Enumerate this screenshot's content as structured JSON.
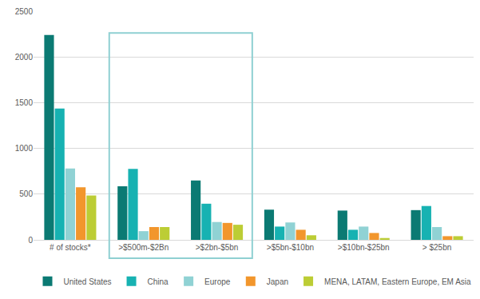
{
  "chart_data": {
    "type": "bar",
    "categories": [
      "# of stocks*",
      ">$500m-$2Bn",
      ">$2bn-$5bn",
      ">$5bn-$10bn",
      ">$10bn-$25bn",
      "> $25bn"
    ],
    "series": [
      {
        "name": "United States",
        "color": "#0b7a73",
        "values": [
          2240,
          585,
          650,
          330,
          320,
          325
        ]
      },
      {
        "name": "China",
        "color": "#17b2b2",
        "values": [
          1435,
          775,
          395,
          145,
          110,
          370
        ]
      },
      {
        "name": "Europe",
        "color": "#90d2d4",
        "values": [
          780,
          95,
          195,
          190,
          145,
          140
        ]
      },
      {
        "name": "Japan",
        "color": "#f2962c",
        "values": [
          575,
          140,
          185,
          110,
          75,
          40
        ]
      },
      {
        "name": "MENA, LATAM, Eastern Europe, EM Asia",
        "color": "#bccd35",
        "values": [
          485,
          140,
          165,
          50,
          20,
          40
        ]
      }
    ],
    "ylim": [
      0,
      2500
    ],
    "yticks": [
      0,
      500,
      1000,
      1500,
      2000,
      2500
    ],
    "grid": true,
    "legend": "bottom"
  }
}
